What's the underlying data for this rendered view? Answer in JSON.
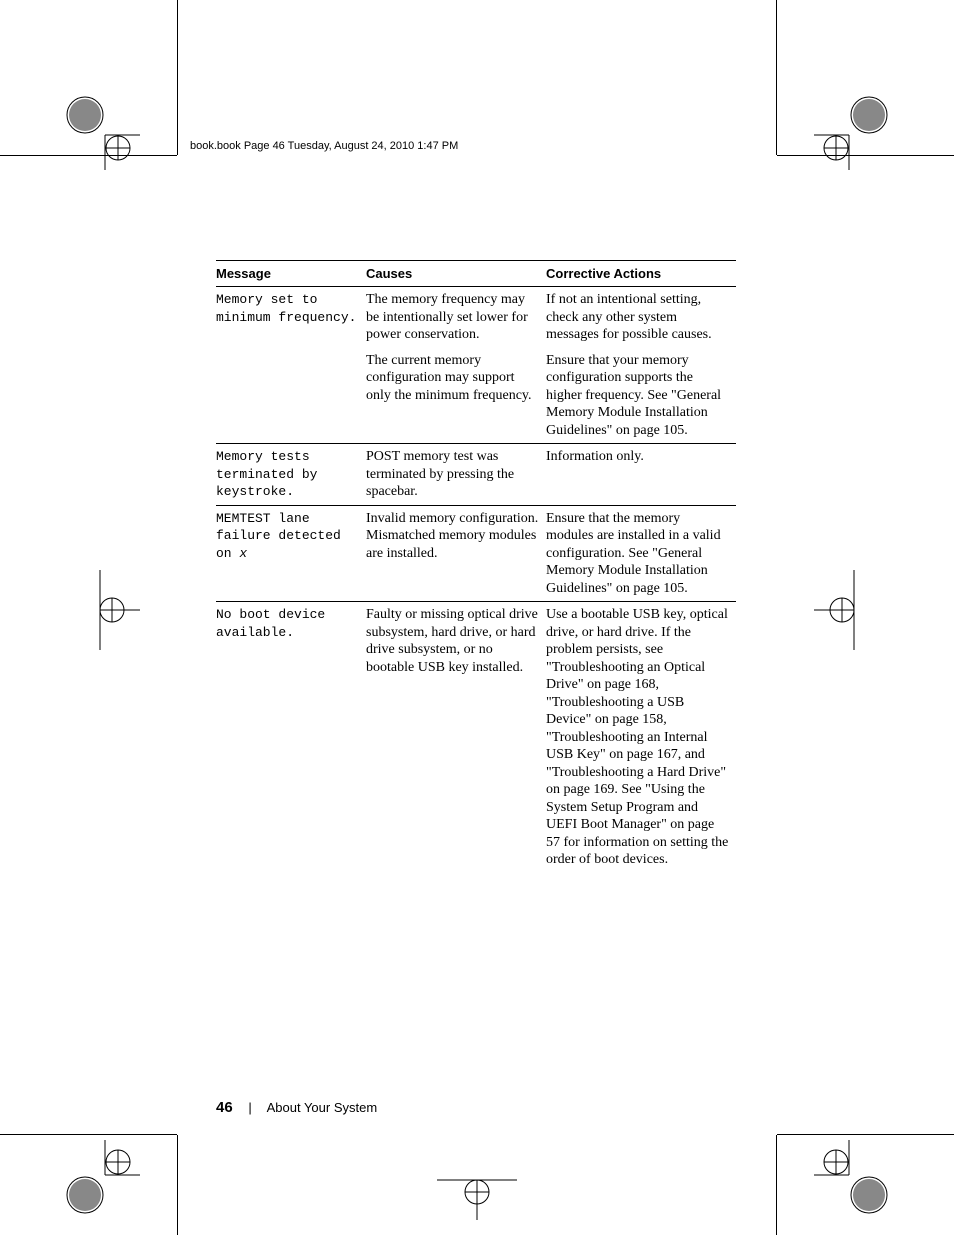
{
  "running_header": "book.book  Page 46  Tuesday, August 24, 2010  1:47 PM",
  "table": {
    "headers": {
      "message": "Message",
      "causes": "Causes",
      "actions": "Corrective Actions"
    },
    "rows": [
      {
        "message": "Memory set to minimum frequency.",
        "cells": [
          {
            "cause": "The memory frequency may be intentionally set lower for power conservation.",
            "action": "If not an intentional setting, check any other system messages for possible causes."
          },
          {
            "cause": "The current memory configuration may support only the minimum frequency.",
            "action": "Ensure that your memory configuration supports the higher frequency. See \"General Memory Module Installation Guidelines\" on page 105."
          }
        ]
      },
      {
        "message": "Memory tests terminated by keystroke.",
        "cells": [
          {
            "cause": "POST memory test was terminated by pressing the spacebar.",
            "action": "Information only."
          }
        ]
      },
      {
        "message_html": "MEMTEST lane failure detected on <span class=\"ital\">x</span>",
        "cells": [
          {
            "cause": "Invalid memory configuration. Mismatched memory modules are installed.",
            "action": "Ensure that the memory modules are installed in a valid configuration. See \"General Memory Module Installation Guidelines\" on page 105."
          }
        ]
      },
      {
        "message": "No boot device available.",
        "cells": [
          {
            "cause": "Faulty or missing optical drive subsystem, hard drive, or hard drive subsystem, or no bootable USB key installed.",
            "action": "Use a bootable USB key, optical drive, or hard drive. If the problem persists, see \"Troubleshooting an Optical Drive\" on page 168, \"Troubleshooting a USB Device\" on page 158, \"Troubleshooting an Internal USB Key\" on page 167, and \"Troubleshooting a Hard Drive\" on page 169. See \"Using the System Setup Program and UEFI Boot Manager\" on page 57 for information on setting the order of boot devices."
          }
        ]
      }
    ]
  },
  "footer": {
    "page_number": "46",
    "section": "About Your System"
  }
}
